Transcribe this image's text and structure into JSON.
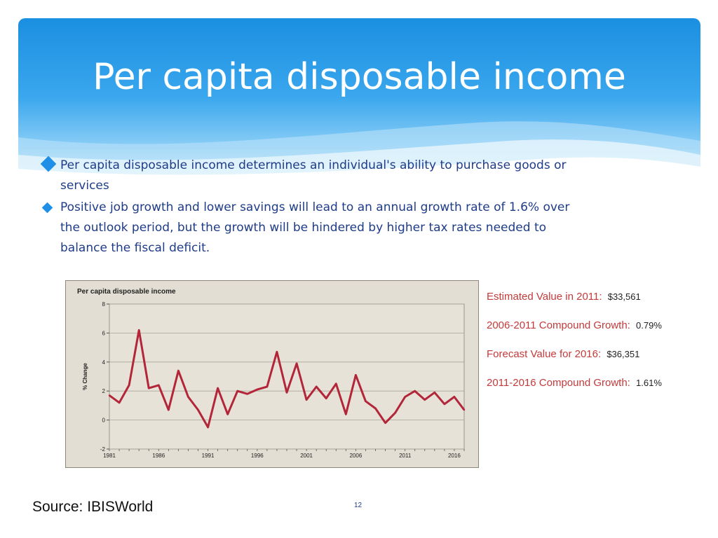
{
  "slide": {
    "title": "Per capita disposable income",
    "bullets": [
      "Per capita disposable income determines an individual's ability to purchase goods or services",
      "Positive job growth and lower savings will lead to an annual growth rate of 1.6% over the outlook period, but the growth will be hindered by higher tax rates needed to balance the fiscal deficit."
    ],
    "source": "Source: IBISWorld",
    "page_number": "12"
  },
  "stats": [
    {
      "label": "Estimated Value in 2011:",
      "value": "$33,561"
    },
    {
      "label": "2006-2011 Compound Growth:",
      "value": "0.79%"
    },
    {
      "label": "Forecast Value for 2016:",
      "value": "$36,351"
    },
    {
      "label": "2011-2016 Compound Growth:",
      "value": "1.61%"
    }
  ],
  "colors": {
    "accent": "#1f8fe8",
    "bullet_text": "#1f3c88",
    "line": "#b3263a",
    "stat_label": "#c43a3a",
    "chart_bg": "#e2ded3"
  },
  "chart_data": {
    "type": "line",
    "title": "Per capita disposable income",
    "xlabel": "",
    "ylabel": "% Change",
    "xlim": [
      1981,
      2017
    ],
    "ylim": [
      -2,
      8
    ],
    "yticks": [
      -2,
      0,
      2,
      4,
      6,
      8
    ],
    "xticks": [
      1981,
      1986,
      1991,
      1996,
      2001,
      2006,
      2011,
      2016
    ],
    "grid": true,
    "series": [
      {
        "x": [
          1981,
          1982,
          1983,
          1984,
          1985,
          1986,
          1987,
          1988,
          1989,
          1990,
          1991,
          1992,
          1993,
          1994,
          1995,
          1996,
          1997,
          1998,
          1999,
          2000,
          2001,
          2002,
          2003,
          2004,
          2005,
          2006,
          2007,
          2008,
          2009,
          2010,
          2011,
          2012,
          2013,
          2014,
          2015,
          2016,
          2017
        ],
        "values": [
          1.7,
          1.2,
          2.4,
          6.2,
          2.2,
          2.4,
          0.7,
          3.4,
          1.6,
          0.7,
          -0.5,
          2.2,
          0.4,
          2.0,
          1.8,
          2.1,
          2.3,
          4.7,
          1.9,
          3.9,
          1.4,
          2.3,
          1.5,
          2.5,
          0.4,
          3.1,
          1.3,
          0.8,
          -0.2,
          0.5,
          1.6,
          2.0,
          1.4,
          1.9,
          1.1,
          1.6,
          0.7
        ]
      }
    ]
  }
}
